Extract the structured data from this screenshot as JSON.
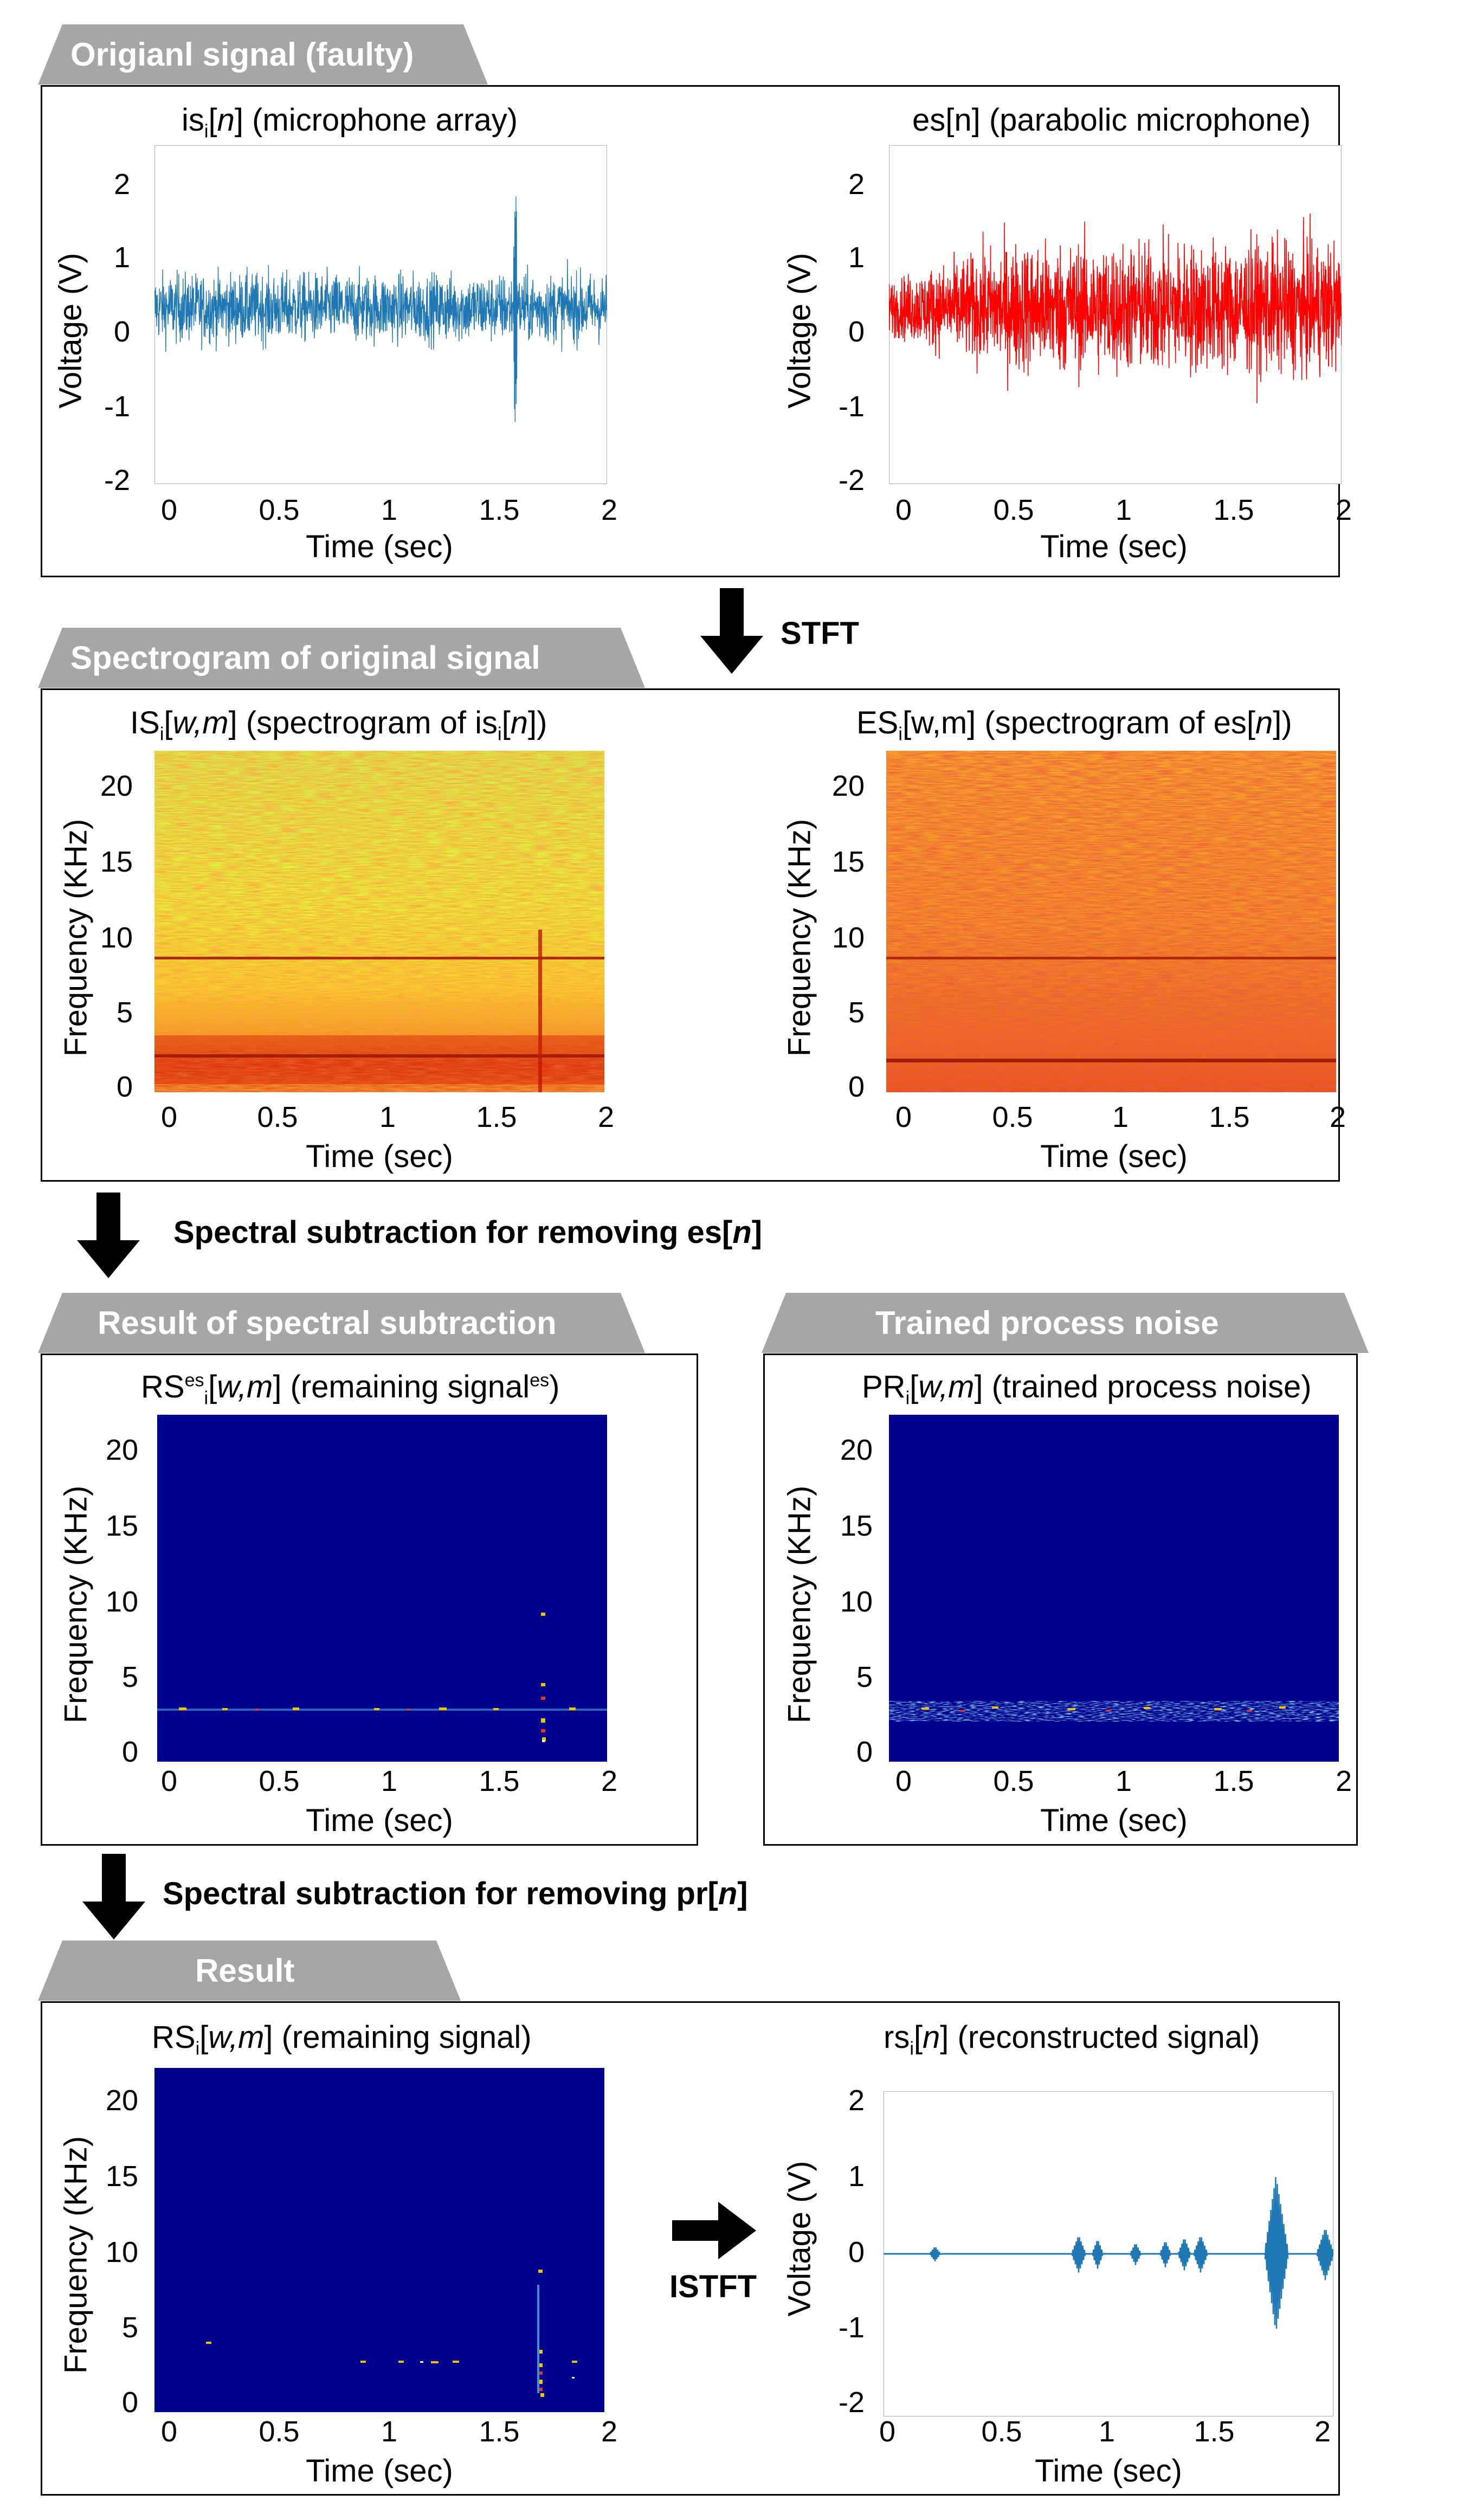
{
  "tabs": {
    "original": "Origianl signal (faulty)",
    "spectrogram": "Spectrogram of original signal",
    "subtraction_result": "Result of spectral subtraction",
    "trained_noise": "Trained  process noise",
    "result": "Result"
  },
  "steps": {
    "stft": "STFT",
    "spectral_es_prefix": "Spectral subtraction for removing es[",
    "spectral_es_var": "n",
    "spectral_es_suffix": "]",
    "spectral_pr_prefix": "Spectral subtraction for removing pr[",
    "spectral_pr_var": "n",
    "spectral_pr_suffix": "]",
    "istft": "ISTFT"
  },
  "plots": {
    "is": {
      "t1": "is",
      "t2": "i",
      "t3": "[",
      "t4": "n",
      "t5": "] (microphone array)",
      "ylabel": "Voltage (V)",
      "xlabel": "Time (sec)",
      "yticks": [
        "2",
        "1",
        "0",
        "-1",
        "-2"
      ],
      "xticks": [
        "0",
        "0.5",
        "1",
        "1.5",
        "2"
      ]
    },
    "es": {
      "title": "es[n] (parabolic microphone)",
      "ylabel": "Voltage (V)",
      "xlabel": "Time (sec)",
      "yticks": [
        "2",
        "1",
        "0",
        "-1",
        "-2"
      ],
      "xticks": [
        "0",
        "0.5",
        "1",
        "1.5",
        "2"
      ]
    },
    "IS": {
      "t1": "IS",
      "t2": "i",
      "t3": "[",
      "t4": "w,m",
      "t5": "]  (spectrogram of is",
      "t6": "i",
      "t7": "[",
      "t8": "n",
      "t9": "])",
      "ylabel": "Frequency (KHz)",
      "xlabel": "Time (sec)",
      "yticks": [
        "20",
        "15",
        "10",
        "5",
        "0"
      ],
      "xticks": [
        "0",
        "0.5",
        "1",
        "1.5",
        "2"
      ]
    },
    "ES": {
      "t1": "ES",
      "t2": "i",
      "t3": "[w,m]  (spectrogram of es[",
      "t4": "n",
      "t5": "])",
      "ylabel": "Frequency (KHz)",
      "xlabel": "Time (sec)",
      "yticks": [
        "20",
        "15",
        "10",
        "5",
        "0"
      ],
      "xticks": [
        "0",
        "0.5",
        "1",
        "1.5",
        "2"
      ]
    },
    "RSes": {
      "t1": "RS",
      "t2": "es",
      "t3": "i",
      "t4": "[",
      "t5": "w,m",
      "t6": "] (remaining signal",
      "t7": "es",
      "t8": ")",
      "ylabel": "Frequency (KHz)",
      "xlabel": "Time (sec)",
      "yticks": [
        "20",
        "15",
        "10",
        "5",
        "0"
      ],
      "xticks": [
        "0",
        "0.5",
        "1",
        "1.5",
        "2"
      ]
    },
    "PR": {
      "t1": "PR",
      "t2": "i",
      "t3": "[",
      "t4": "w,m",
      "t5": "] (trained process noise)",
      "ylabel": "Frequency (KHz)",
      "xlabel": "Time (sec)",
      "yticks": [
        "20",
        "15",
        "10",
        "5",
        "0"
      ],
      "xticks": [
        "0",
        "0.5",
        "1",
        "1.5",
        "2"
      ]
    },
    "RS": {
      "t1": "RS",
      "t2": "i",
      "t3": "[",
      "t4": "w,m",
      "t5": "] (remaining  signal)",
      "ylabel": "Frequency (KHz)",
      "xlabel": "Time (sec)",
      "yticks": [
        "20",
        "15",
        "10",
        "5",
        "0"
      ],
      "xticks": [
        "0",
        "0.5",
        "1",
        "1.5",
        "2"
      ]
    },
    "rs": {
      "t1": "rs",
      "t2": "i",
      "t3": "[",
      "t4": "n",
      "t5": "] (reconstructed signal)",
      "ylabel": "Voltage (V)",
      "xlabel": "Time (sec)",
      "yticks": [
        "2",
        "1",
        "0",
        "-1",
        "-2"
      ],
      "xticks": [
        "0",
        "0.5",
        "1",
        "1.5",
        "2"
      ]
    }
  },
  "colors": {
    "waveform_blue": "#1f77b4",
    "waveform_red": "#ff0000",
    "dark_blue": "#00008f",
    "tab_gray": "#a6a6a6"
  }
}
